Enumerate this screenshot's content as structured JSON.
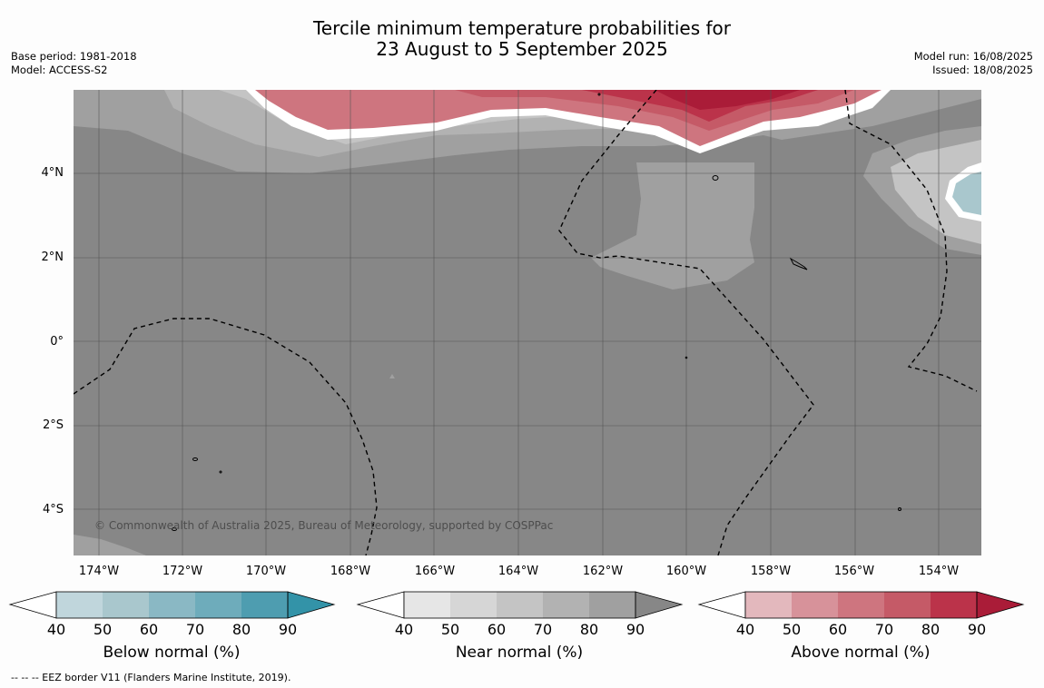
{
  "title": {
    "line1": "Tercile minimum temperature probabilities for",
    "line2": "23 August to 5 September 2025"
  },
  "meta_left": {
    "base_period": "Base period: 1981-2018",
    "model": "Model: ACCESS-S2"
  },
  "meta_right": {
    "model_run": "Model run: 16/08/2025",
    "issued": "Issued: 18/08/2025"
  },
  "map": {
    "lat_labels": [
      "4°N",
      "2°N",
      "0°",
      "2°S",
      "4°S"
    ],
    "lon_labels": [
      "174°W",
      "172°W",
      "170°W",
      "168°W",
      "166°W",
      "164°W",
      "162°W",
      "160°W",
      "158°W",
      "156°W",
      "154°W"
    ],
    "copyright": "© Commonwealth of Australia 2025, Bureau of Meteorology, supported by COSPPac"
  },
  "colorbars": [
    {
      "label": "Below normal (%)",
      "ticks": [
        "40",
        "50",
        "60",
        "70",
        "80",
        "90"
      ],
      "colors": [
        "#c0d6dc",
        "#a9c7cd",
        "#8ab8c4",
        "#6eacbb",
        "#4e9db0",
        "#3393a8"
      ]
    },
    {
      "label": "Near normal (%)",
      "ticks": [
        "40",
        "50",
        "60",
        "70",
        "80",
        "90"
      ],
      "colors": [
        "#e6e6e6",
        "#d6d6d6",
        "#c4c4c4",
        "#b2b2b2",
        "#a0a0a0",
        "#878787"
      ]
    },
    {
      "label": "Above normal (%)",
      "ticks": [
        "40",
        "50",
        "60",
        "70",
        "80",
        "90"
      ],
      "colors": [
        "#e3b8bd",
        "#d7929a",
        "#ce757f",
        "#c55a67",
        "#bb334a",
        "#aa1c38"
      ]
    }
  ],
  "footer": "--  --  -- EEZ border V11 (Flanders Marine Institute, 2019)."
}
